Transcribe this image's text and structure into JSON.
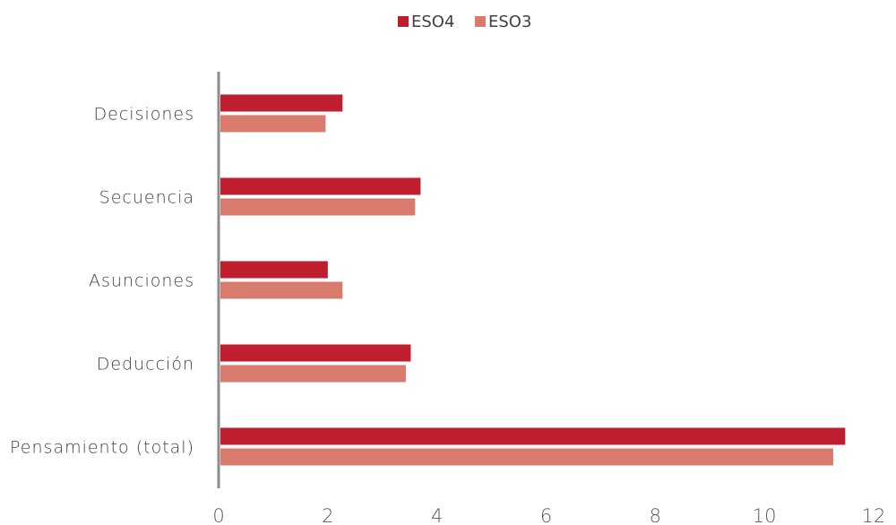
{
  "chart_data": {
    "type": "bar",
    "orientation": "horizontal",
    "categories": [
      "Decisiones",
      "Secuencia",
      "Asunciones",
      "Deducción",
      "Pensamiento (total)"
    ],
    "series": [
      {
        "name": "ESO4",
        "color": "#be1e2d",
        "values": [
          2.27,
          3.7,
          2.0,
          3.52,
          11.48
        ]
      },
      {
        "name": "ESO3",
        "color": "#d97b6c",
        "values": [
          1.96,
          3.6,
          2.27,
          3.43,
          11.26
        ]
      }
    ],
    "xlim": [
      0,
      12
    ],
    "xticks": [
      "0",
      "2",
      "4",
      "6",
      "8",
      "10",
      "12"
    ],
    "legend_position": "top",
    "grid": false,
    "axis_color": "#8c8c8c"
  }
}
